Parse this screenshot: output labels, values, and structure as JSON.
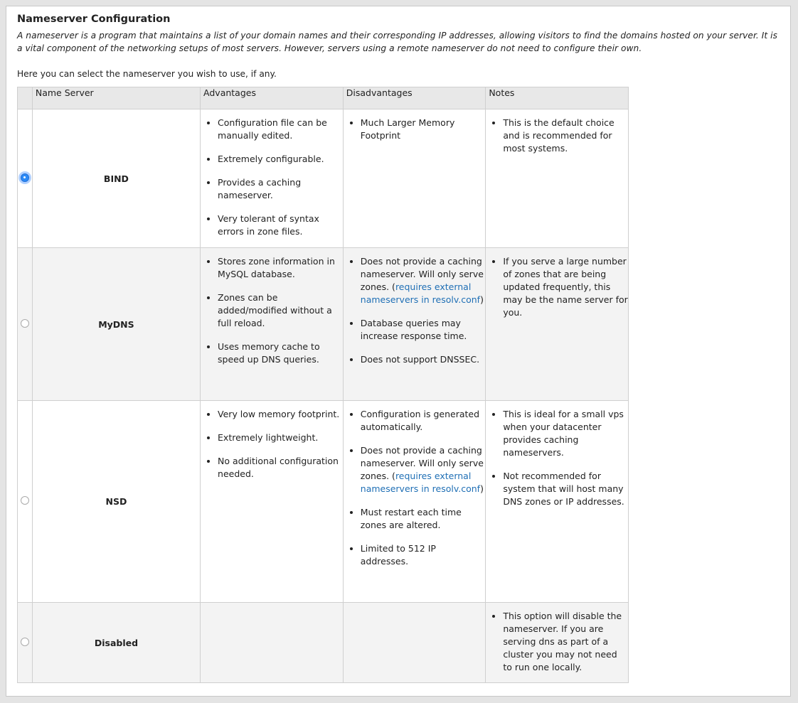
{
  "title": "Nameserver Configuration",
  "description": "A nameserver is a program that maintains a list of your domain names and their corresponding IP addresses, allowing visitors to find the domains hosted on your server. It is a vital component of the networking setups of most servers. However, servers using a remote nameserver do not need to configure their own.",
  "intro": "Here you can select the nameserver you wish to use, if any.",
  "headers": {
    "name": "Name Server",
    "advantages": "Advantages",
    "disadvantages": "Disadvantages",
    "notes": "Notes"
  },
  "rows": [
    {
      "name": "BIND",
      "selected": true,
      "advantages": [
        "Configuration file can be manually edited.",
        "Extremely configurable.",
        "Provides a caching nameserver.",
        "Very tolerant of syntax errors in zone files."
      ],
      "disadvantages": [
        {
          "text": "Much Larger Memory Footprint"
        }
      ],
      "notes": [
        "This is the default choice and is recommended for most systems."
      ]
    },
    {
      "name": "MyDNS",
      "selected": false,
      "advantages": [
        "Stores zone information in MySQL database.",
        "Zones can be added/modified without a full reload.",
        "Uses memory cache to speed up DNS queries."
      ],
      "disadvantages": [
        {
          "text": "Does not provide a caching nameserver. Will only serve zones.",
          "link": "requires external nameservers in resolv.conf"
        },
        {
          "text": "Database queries may increase response time."
        },
        {
          "text": "Does not support DNSSEC."
        }
      ],
      "notes": [
        "If you serve a large number of zones that are being updated frequently, this may be the name server for you."
      ]
    },
    {
      "name": "NSD",
      "selected": false,
      "advantages": [
        "Very low memory footprint.",
        "Extremely lightweight.",
        "No additional configuration needed."
      ],
      "disadvantages": [
        {
          "text": "Configuration is generated automatically."
        },
        {
          "text": "Does not provide a caching nameserver. Will only serve zones.",
          "link": "requires external nameservers in resolv.conf"
        },
        {
          "text": "Must restart each time zones are altered."
        },
        {
          "text": "Limited to 512 IP addresses."
        }
      ],
      "notes": [
        "This is ideal for a small vps when your datacenter provides caching nameservers.",
        "Not recommended for system that will host many DNS zones or IP addresses."
      ]
    },
    {
      "name": "Disabled",
      "selected": false,
      "advantages": [],
      "disadvantages": [],
      "notes": [
        "This option will disable the nameserver. If you are serving dns as part of a cluster you may not need to run one locally."
      ]
    }
  ],
  "colors": {
    "link": "#1f6fb5",
    "radio_selected": "#2b8af7"
  }
}
